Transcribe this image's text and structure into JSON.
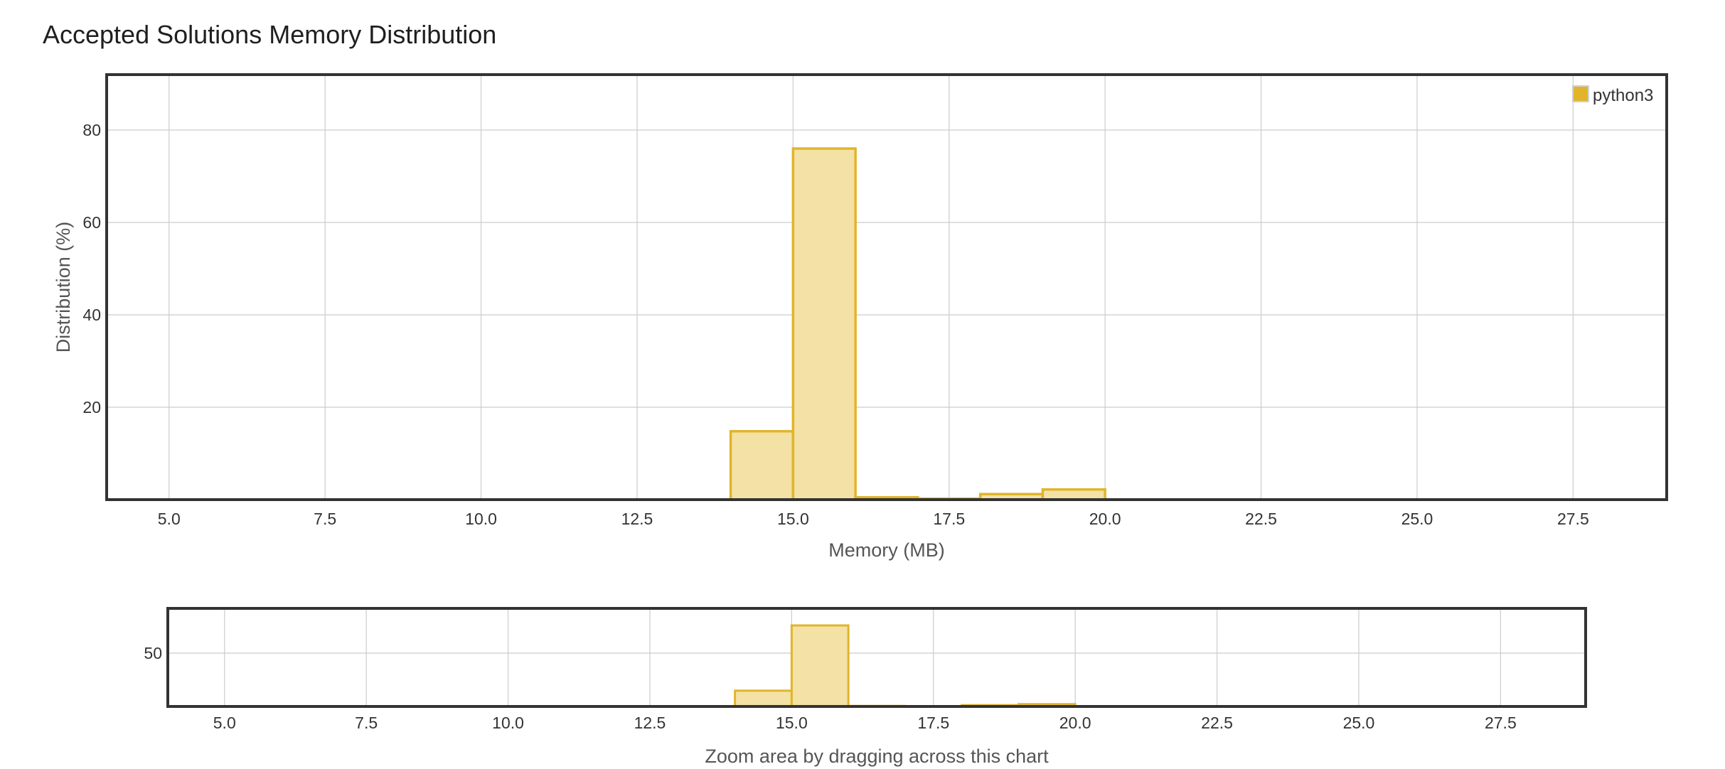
{
  "title": "Accepted Solutions Memory Distribution",
  "colors": {
    "bar_fill": "#f4e1a6",
    "bar_stroke": "#e0b52a",
    "legend_swatch": "#e0b52a",
    "grid": "#cccccc",
    "frame": "#333333"
  },
  "chart_data": [
    {
      "type": "bar",
      "role": "main",
      "xlabel": "Memory (MB)",
      "ylabel": "Distribution (%)",
      "xlim": [
        4.0,
        29.0
      ],
      "ylim": [
        0,
        92
      ],
      "x_ticks": [
        "5.0",
        "7.5",
        "10.0",
        "12.5",
        "15.0",
        "17.5",
        "20.0",
        "22.5",
        "25.0",
        "27.5"
      ],
      "x_tick_values": [
        5.0,
        7.5,
        10.0,
        12.5,
        15.0,
        17.5,
        20.0,
        22.5,
        25.0,
        27.5
      ],
      "y_ticks": [
        "20",
        "40",
        "60",
        "80"
      ],
      "y_tick_values": [
        20,
        40,
        60,
        80
      ],
      "grid": true,
      "legend": {
        "position": "top-right",
        "entries": [
          "python3"
        ]
      },
      "series": [
        {
          "name": "python3",
          "bins": [
            {
              "x0": 14.0,
              "x1": 15.0,
              "value": 14.8
            },
            {
              "x0": 15.0,
              "x1": 16.0,
              "value": 76.0
            },
            {
              "x0": 16.0,
              "x1": 17.0,
              "value": 0.5
            },
            {
              "x0": 17.0,
              "x1": 18.0,
              "value": 0.2
            },
            {
              "x0": 18.0,
              "x1": 19.0,
              "value": 1.2
            },
            {
              "x0": 19.0,
              "x1": 20.0,
              "value": 2.2
            }
          ]
        }
      ]
    },
    {
      "type": "bar",
      "role": "navigator",
      "xlabel": "Zoom area by dragging across this chart",
      "xlim": [
        4.0,
        29.0
      ],
      "ylim": [
        0,
        92
      ],
      "x_ticks": [
        "5.0",
        "7.5",
        "10.0",
        "12.5",
        "15.0",
        "17.5",
        "20.0",
        "22.5",
        "25.0",
        "27.5"
      ],
      "x_tick_values": [
        5.0,
        7.5,
        10.0,
        12.5,
        15.0,
        17.5,
        20.0,
        22.5,
        25.0,
        27.5
      ],
      "y_ticks": [
        "50"
      ],
      "y_tick_values": [
        50
      ],
      "grid": true,
      "series": [
        {
          "name": "python3",
          "bins": [
            {
              "x0": 14.0,
              "x1": 15.0,
              "value": 14.8
            },
            {
              "x0": 15.0,
              "x1": 16.0,
              "value": 76.0
            },
            {
              "x0": 16.0,
              "x1": 17.0,
              "value": 0.5
            },
            {
              "x0": 17.0,
              "x1": 18.0,
              "value": 0.2
            },
            {
              "x0": 18.0,
              "x1": 19.0,
              "value": 1.2
            },
            {
              "x0": 19.0,
              "x1": 20.0,
              "value": 2.2
            }
          ]
        }
      ]
    }
  ]
}
